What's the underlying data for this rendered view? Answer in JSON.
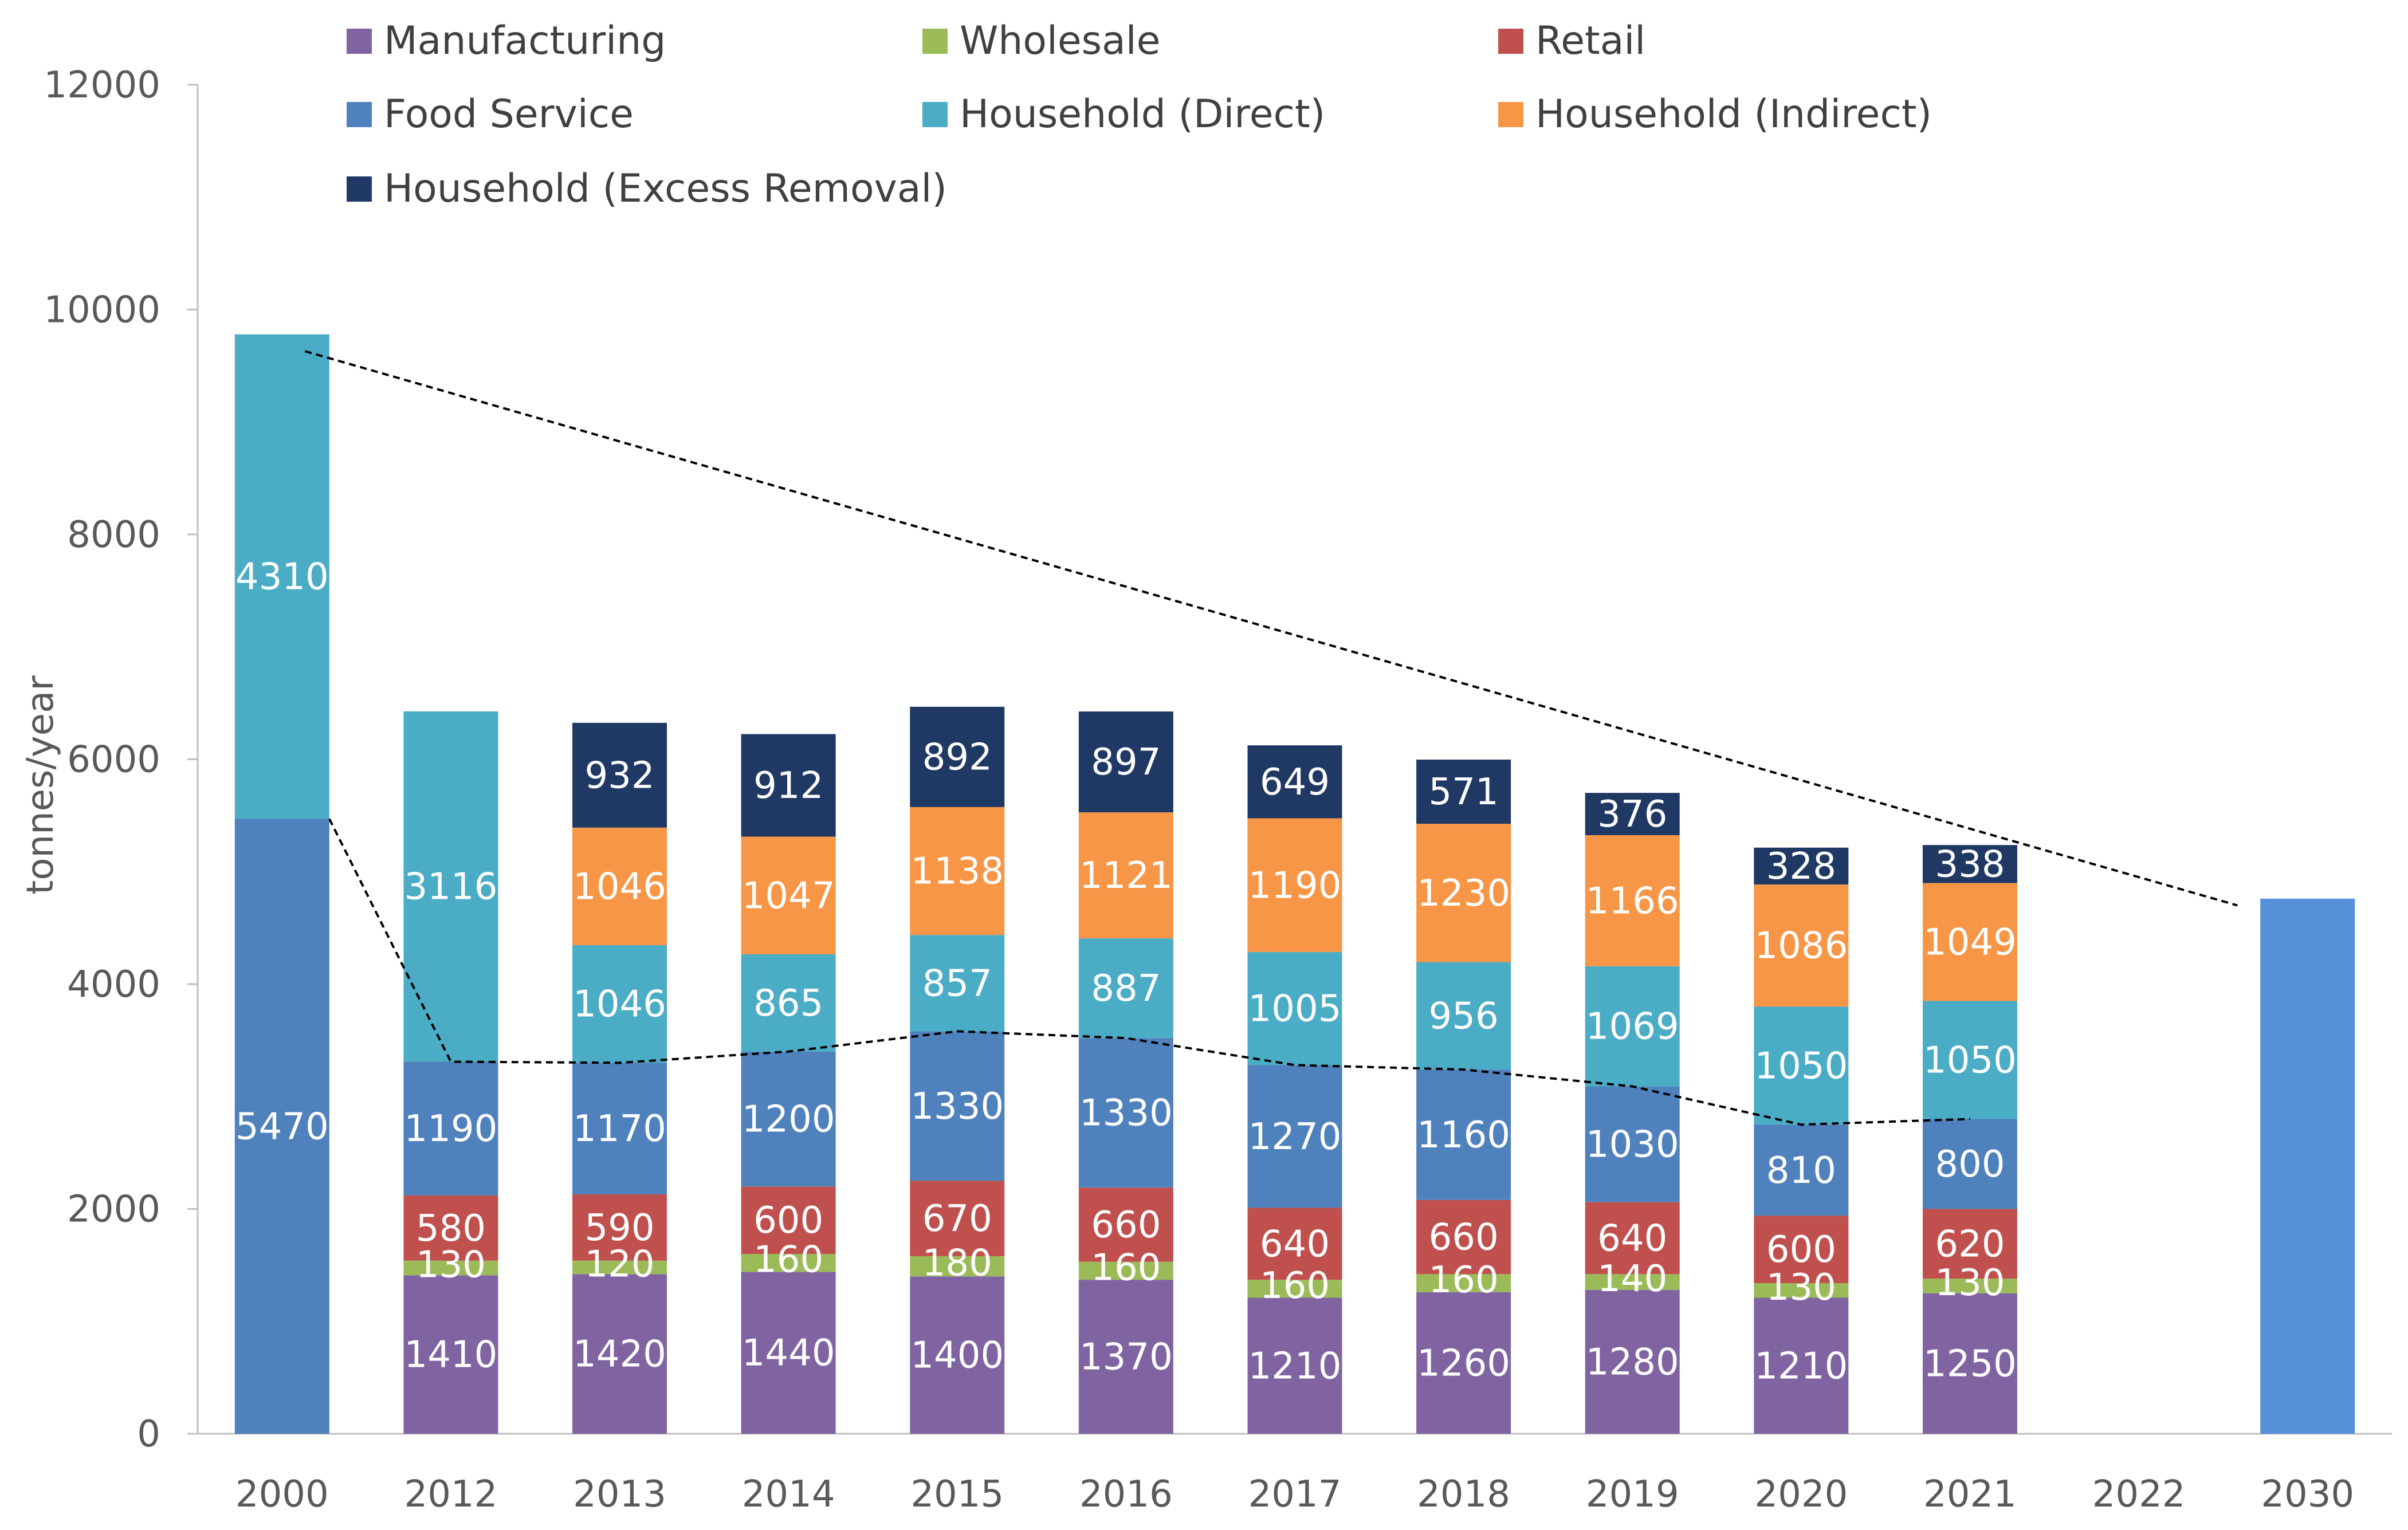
{
  "chart_data": {
    "type": "bar",
    "stacked": true,
    "title": "",
    "xlabel": "",
    "ylabel": "tonnes/year",
    "ylim": [
      0,
      12000
    ],
    "yticks": [
      0,
      2000,
      4000,
      6000,
      8000,
      10000,
      12000
    ],
    "categories": [
      "2000",
      "2012",
      "2013",
      "2014",
      "2015",
      "2016",
      "2017",
      "2018",
      "2019",
      "2020",
      "2021",
      "2022",
      "2030"
    ],
    "legend_position": "top",
    "series": [
      {
        "name": "Manufacturing",
        "color": "#8064A2",
        "values": [
          null,
          1410,
          1420,
          1440,
          1400,
          1370,
          1210,
          1260,
          1280,
          1210,
          1250,
          null,
          null
        ]
      },
      {
        "name": "Wholesale",
        "color": "#9BBB59",
        "values": [
          null,
          130,
          120,
          160,
          180,
          160,
          160,
          160,
          140,
          130,
          130,
          null,
          null
        ]
      },
      {
        "name": "Retail",
        "color": "#C0504D",
        "values": [
          null,
          580,
          590,
          600,
          670,
          660,
          640,
          660,
          640,
          600,
          620,
          null,
          null
        ]
      },
      {
        "name": "Food Service",
        "color": "#4F81BD",
        "values": [
          5470,
          1190,
          1170,
          1200,
          1330,
          1330,
          1270,
          1160,
          1030,
          810,
          800,
          null,
          4760
        ]
      },
      {
        "name": "Household (Direct)",
        "color": "#4BACC6",
        "values": [
          4310,
          3116,
          1046,
          865,
          857,
          887,
          1005,
          956,
          1069,
          1050,
          1050,
          null,
          null
        ]
      },
      {
        "name": "Household (Indirect)",
        "color": "#F79646",
        "values": [
          null,
          null,
          1046,
          1047,
          1138,
          1121,
          1190,
          1230,
          1166,
          1086,
          1049,
          null,
          null
        ]
      },
      {
        "name": "Household (Excess Removal)",
        "color": "#1F3864",
        "values": [
          null,
          null,
          932,
          912,
          892,
          897,
          649,
          571,
          376,
          328,
          338,
          null,
          null
        ]
      }
    ],
    "unlabeled_bars": {
      "2030": "target bar, no data label (approx. 4760)"
    },
    "total_series_labels": {
      "2000": "hidden",
      "2030": "hidden"
    },
    "trend_lines": [
      {
        "name": "total reduction trend",
        "style": "dashed",
        "from": [
          "2000",
          9630
        ],
        "to": [
          "2030",
          4700
        ]
      },
      {
        "name": "non-household total",
        "style": "dashed",
        "points": [
          [
            "2000",
            5470
          ],
          [
            "2012",
            3310
          ],
          [
            "2013",
            3300
          ],
          [
            "2014",
            3400
          ],
          [
            "2015",
            3580
          ],
          [
            "2016",
            3520
          ],
          [
            "2017",
            3280
          ],
          [
            "2018",
            3240
          ],
          [
            "2019",
            3090
          ],
          [
            "2020",
            2750
          ],
          [
            "2021",
            2800
          ]
        ]
      }
    ]
  }
}
